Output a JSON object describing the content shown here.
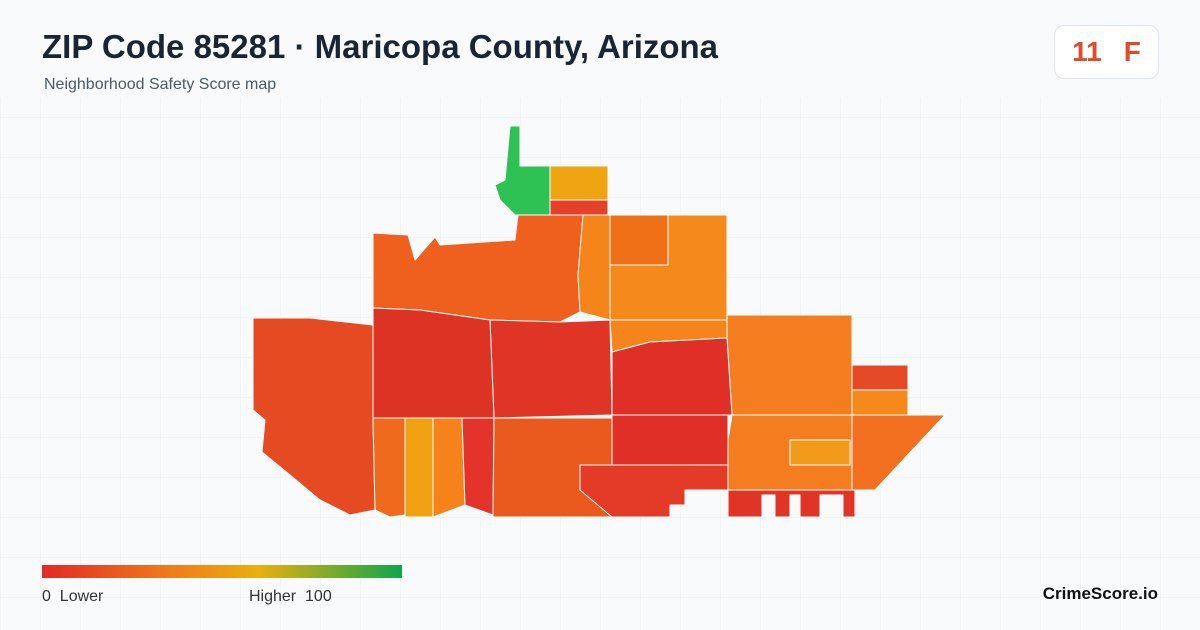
{
  "header": {
    "title": "ZIP Code 85281 · Maricopa County, Arizona",
    "subtitle": "Neighborhood Safety Score map"
  },
  "score": {
    "value": 11,
    "grade": "F"
  },
  "legend": {
    "min": 0,
    "min_label": "Lower",
    "max_label": "Higher",
    "max": 100
  },
  "brand": "CrimeScore.io"
}
